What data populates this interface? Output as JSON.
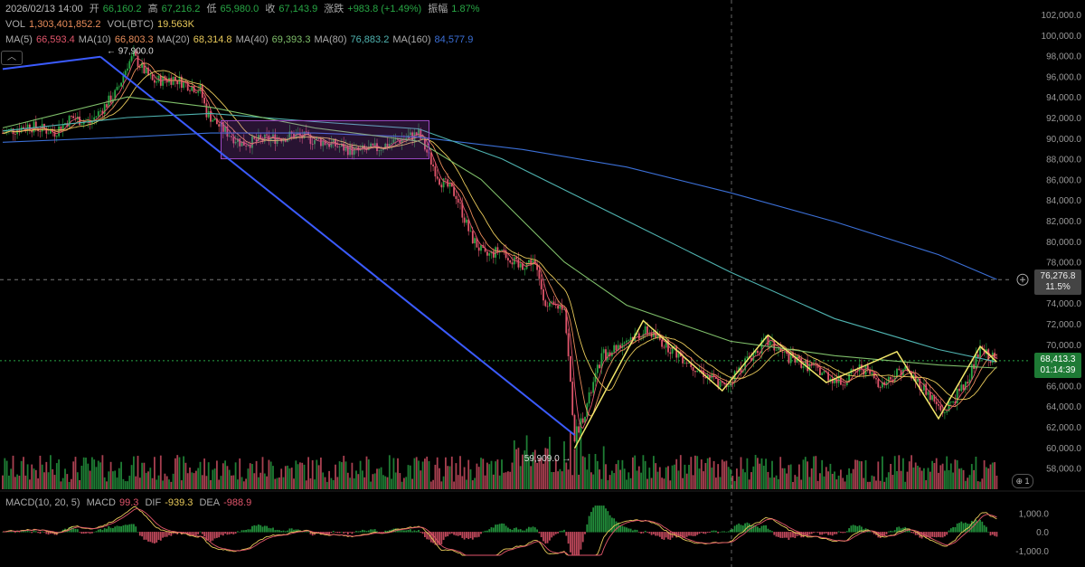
{
  "ohlc_header": {
    "datetime": "2026/02/13 14:00",
    "open_label": "开",
    "open": "66,160.2",
    "high_label": "高",
    "high": "67,216.2",
    "low_label": "低",
    "low": "65,980.0",
    "close_label": "收",
    "close": "67,143.9",
    "change_label": "涨跌",
    "change": "+983.8 (+1.49%)",
    "amplitude_label": "振幅",
    "amplitude": "1.87%"
  },
  "volume_header": {
    "vol_label": "VOL",
    "vol": "1,303,401,852.2",
    "vol_btc_label": "VOL(BTC)",
    "vol_btc": "19.563K"
  },
  "ma_header": [
    {
      "label": "MA(5)",
      "value": "66,593.4",
      "color": "#e0556b"
    },
    {
      "label": "MA(10)",
      "value": "66,803.3",
      "color": "#e88c5a"
    },
    {
      "label": "MA(20)",
      "value": "68,314.8",
      "color": "#e8c95a"
    },
    {
      "label": "MA(40)",
      "value": "69,393.3",
      "color": "#7fbf6a"
    },
    {
      "label": "MA(80)",
      "value": "76,883.2",
      "color": "#4fb3b0"
    },
    {
      "label": "MA(160)",
      "value": "84,577.9",
      "color": "#3b6fd6"
    }
  ],
  "macd_header": {
    "label": "MACD(10, 20, 5)",
    "macd_label": "MACD",
    "macd": "99.3",
    "dif_label": "DIF",
    "dif": "-939.3",
    "dea_label": "DEA",
    "dea": "-988.9"
  },
  "annotations": {
    "high_marker": "← 97,900.0",
    "low_marker": "59,909.0 →",
    "crosshair_price": "76,276.8",
    "crosshair_pct": "11.5%",
    "last_price": "68,413.3",
    "countdown": "01:14:39",
    "indicator_count": "1"
  },
  "icons": {
    "expand": "chevron-up-icon",
    "add": "plus-circle-icon",
    "globe": "globe-icon"
  },
  "colors": {
    "up": "#28a745",
    "down": "#e0556b",
    "trendline": "#3b5bff",
    "zigzag": "#f2e66a",
    "box": "#a04bc9"
  },
  "chart_data": {
    "type": "candlestick",
    "price_axis": {
      "ticks": [
        "102,000.0",
        "100,000.0",
        "98,000.0",
        "96,000.0",
        "94,000.0",
        "92,000.0",
        "90,000.0",
        "88,000.0",
        "86,000.0",
        "84,000.0",
        "82,000.0",
        "80,000.0",
        "78,000.0",
        "76,000.0",
        "74,000.0",
        "72,000.0",
        "70,000.0",
        "68,000.0",
        "66,000.0",
        "64,000.0",
        "62,000.0",
        "60,000.0",
        "58,000.0"
      ],
      "range": [
        57000,
        102700
      ]
    },
    "macd_axis": {
      "ticks": [
        "1,000.0",
        "0.0",
        "-1,000.0"
      ],
      "range": [
        -1300,
        1500
      ]
    },
    "price_path": [
      [
        0,
        90500
      ],
      [
        12,
        91200
      ],
      [
        25,
        90600
      ],
      [
        33,
        92000
      ],
      [
        42,
        91500
      ],
      [
        55,
        94500
      ],
      [
        60,
        97200
      ],
      [
        63,
        97900
      ],
      [
        72,
        95500
      ],
      [
        82,
        95800
      ],
      [
        95,
        94700
      ],
      [
        98,
        92500
      ],
      [
        105,
        91000
      ],
      [
        115,
        89500
      ],
      [
        125,
        89800
      ],
      [
        140,
        90300
      ],
      [
        155,
        89600
      ],
      [
        170,
        88700
      ],
      [
        180,
        89000
      ],
      [
        190,
        89800
      ],
      [
        200,
        90400
      ],
      [
        205,
        88200
      ],
      [
        210,
        86000
      ],
      [
        218,
        84500
      ],
      [
        225,
        80500
      ],
      [
        232,
        78500
      ],
      [
        240,
        79200
      ],
      [
        248,
        77500
      ],
      [
        255,
        78200
      ],
      [
        262,
        73500
      ],
      [
        270,
        73800
      ],
      [
        275,
        61000
      ],
      [
        280,
        63500
      ],
      [
        288,
        68800
      ],
      [
        300,
        70500
      ],
      [
        310,
        71300
      ],
      [
        320,
        69800
      ],
      [
        333,
        67800
      ],
      [
        347,
        65800
      ],
      [
        357,
        68300
      ],
      [
        367,
        70300
      ],
      [
        377,
        68800
      ],
      [
        390,
        67700
      ],
      [
        403,
        66300
      ],
      [
        413,
        67800
      ],
      [
        423,
        66100
      ],
      [
        433,
        67700
      ],
      [
        443,
        65800
      ],
      [
        452,
        63300
      ],
      [
        462,
        65900
      ],
      [
        470,
        69300
      ],
      [
        478,
        68400
      ]
    ],
    "zigzag": [
      [
        275,
        59909
      ],
      [
        308,
        72300
      ],
      [
        346,
        65500
      ],
      [
        368,
        70900
      ],
      [
        396,
        66300
      ],
      [
        430,
        69300
      ],
      [
        450,
        62800
      ],
      [
        470,
        69800
      ],
      [
        478,
        68300
      ]
    ],
    "trendlines": [
      {
        "from": [
          0,
          96700
        ],
        "to": [
          47,
          97900
        ]
      },
      {
        "from": [
          47,
          97900
        ],
        "to": [
          275,
          61200
        ]
      }
    ],
    "consolidation_box": {
      "from": [
        105,
        91700
      ],
      "to": [
        205,
        88000
      ]
    },
    "moving_averages": [
      {
        "name": "MA(160)",
        "points": [
          [
            0,
            89600
          ],
          [
            60,
            90100
          ],
          [
            100,
            90500
          ],
          [
            150,
            90500
          ],
          [
            200,
            90100
          ],
          [
            250,
            88900
          ],
          [
            300,
            87200
          ],
          [
            350,
            84700
          ],
          [
            400,
            81900
          ],
          [
            450,
            78700
          ],
          [
            478,
            76300
          ]
        ]
      },
      {
        "name": "MA(80)",
        "points": [
          [
            0,
            90700
          ],
          [
            60,
            92000
          ],
          [
            100,
            92400
          ],
          [
            150,
            91600
          ],
          [
            200,
            90900
          ],
          [
            240,
            88000
          ],
          [
            300,
            82000
          ],
          [
            350,
            77000
          ],
          [
            400,
            72500
          ],
          [
            450,
            69500
          ],
          [
            478,
            68300
          ]
        ]
      },
      {
        "name": "MA(40)",
        "points": [
          [
            0,
            91000
          ],
          [
            60,
            94000
          ],
          [
            100,
            93000
          ],
          [
            150,
            91000
          ],
          [
            200,
            89700
          ],
          [
            230,
            86000
          ],
          [
            270,
            78000
          ],
          [
            300,
            73800
          ],
          [
            350,
            70300
          ],
          [
            400,
            68900
          ],
          [
            450,
            68000
          ],
          [
            478,
            67700
          ]
        ]
      }
    ],
    "macd_dif_dea": {
      "dif_last": -939.3,
      "dea_last": -988.9,
      "macd_last": 99.3
    }
  }
}
